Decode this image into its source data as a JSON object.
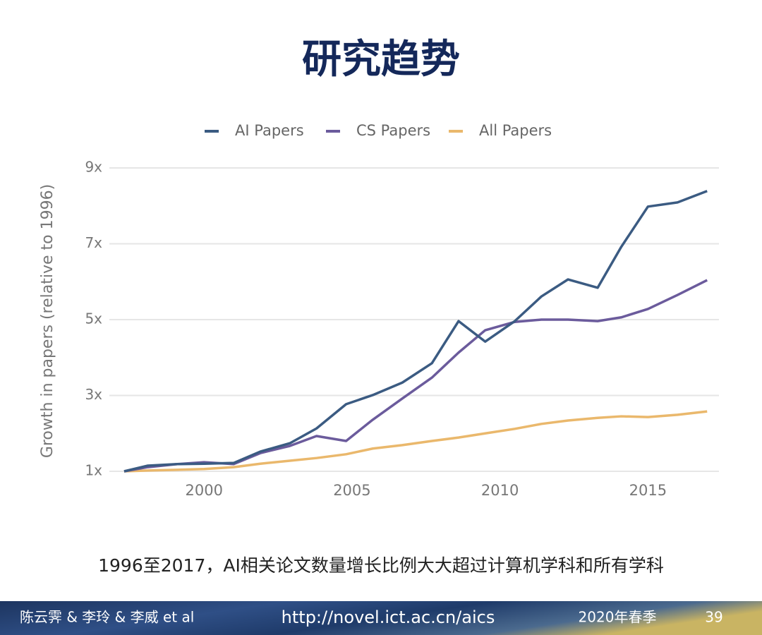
{
  "title": "研究趋势",
  "chart_data": {
    "type": "line",
    "ylabel": "Growth in papers (relative to 1996)",
    "x": [
      1997.3,
      1998.1,
      1999.1,
      2000.0,
      2001.0,
      2001.9,
      2002.9,
      2003.8,
      2004.8,
      2005.7,
      2006.7,
      2007.7,
      2008.6,
      2009.5,
      2010.5,
      2011.4,
      2012.3,
      2013.3,
      2014.1,
      2015.0,
      2016.0,
      2017.0
    ],
    "series": [
      {
        "name": "AI Papers",
        "color": "#3b5b82",
        "values": [
          1.0,
          1.15,
          1.19,
          1.2,
          1.22,
          1.52,
          1.74,
          2.13,
          2.77,
          3.01,
          3.34,
          3.85,
          4.96,
          4.42,
          4.96,
          5.61,
          6.06,
          5.84,
          6.92,
          7.98,
          8.09,
          8.39
        ]
      },
      {
        "name": "CS Papers",
        "color": "#6b5b9c",
        "values": [
          1.0,
          1.11,
          1.19,
          1.24,
          1.19,
          1.48,
          1.67,
          1.93,
          1.8,
          2.36,
          2.92,
          3.47,
          4.13,
          4.72,
          4.94,
          5.0,
          5.0,
          4.96,
          5.06,
          5.28,
          5.65,
          6.04
        ]
      },
      {
        "name": "All Papers",
        "color": "#eab86c",
        "values": [
          1.0,
          1.02,
          1.04,
          1.06,
          1.11,
          1.2,
          1.28,
          1.35,
          1.45,
          1.6,
          1.69,
          1.8,
          1.89,
          2.0,
          2.12,
          2.25,
          2.34,
          2.41,
          2.45,
          2.43,
          2.49,
          2.58
        ]
      }
    ],
    "xlim": [
      1996.8,
      2017.4
    ],
    "xticks": [
      2000,
      2005,
      2010,
      2015
    ],
    "ylim": [
      1,
      9
    ],
    "yticks": [
      {
        "value": 1,
        "label": "1x"
      },
      {
        "value": 3,
        "label": "3x"
      },
      {
        "value": 5,
        "label": "5x"
      },
      {
        "value": 7,
        "label": "7x"
      },
      {
        "value": 9,
        "label": "9x"
      }
    ],
    "grid": true,
    "legend": "top"
  },
  "caption": "1996至2017，AI相关论文数量增长比例大大超过计算机学科和所有学科",
  "footer": {
    "authors": "陈云霁 & 李玲 & 李威 et al",
    "url": "http://novel.ict.ac.cn/aics",
    "term": "2020年春季",
    "page": "39"
  }
}
